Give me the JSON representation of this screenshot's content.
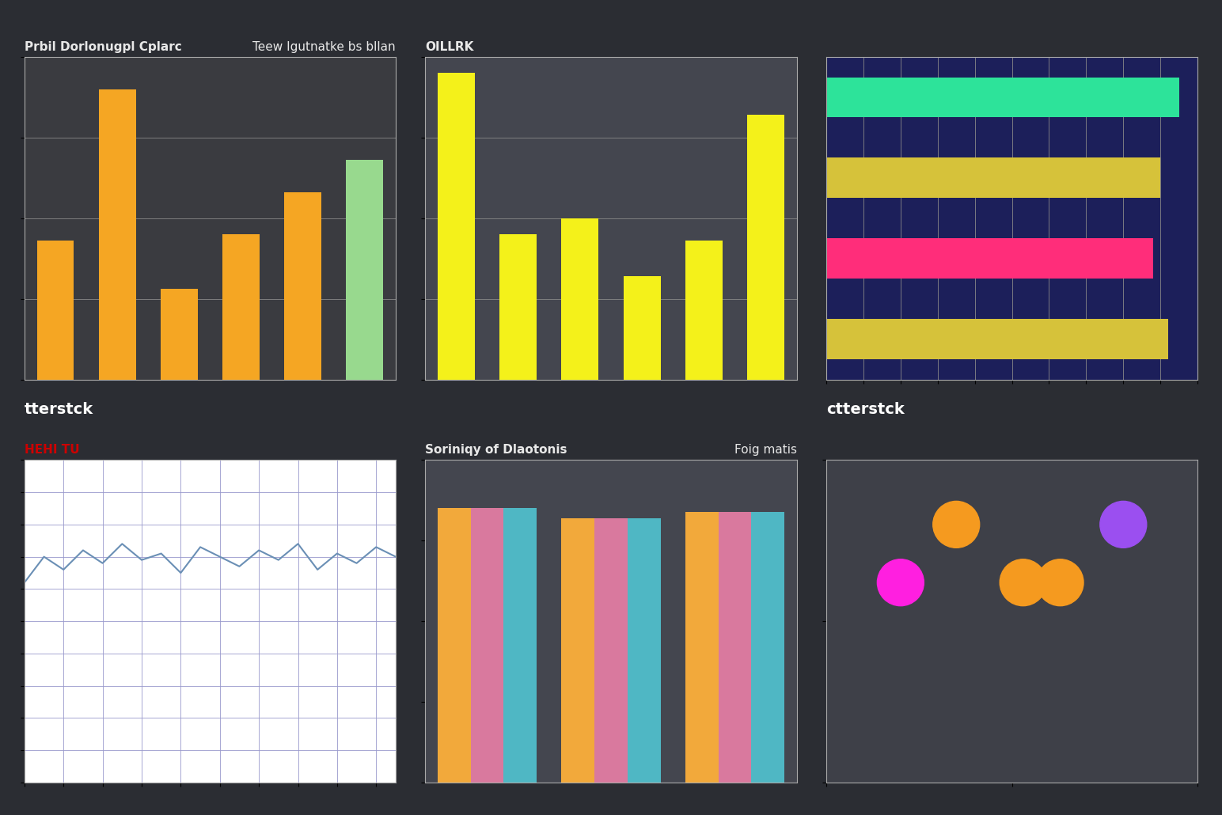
{
  "chart_data": [
    {
      "type": "bar",
      "title": "Prbil Dorlonugpl Cplarc",
      "subtitle": "Teew Igutnatke bs bllan",
      "categories": [
        null,
        null,
        null,
        null,
        null,
        null
      ],
      "values": [
        43,
        90,
        28,
        45,
        58,
        68
      ],
      "colors": [
        "#f5a623",
        "#f5a623",
        "#f5a623",
        "#f5a623",
        "#f5a623",
        "#98d98e"
      ],
      "ylim": [
        0,
        100
      ],
      "yticks": [
        0,
        25,
        50,
        75,
        100
      ],
      "grid": true,
      "tick_labels": false,
      "annotations": [
        "tterstck"
      ]
    },
    {
      "type": "bar",
      "title": "OILLRK",
      "categories": [
        null,
        null,
        null,
        null,
        null,
        null
      ],
      "values": [
        95,
        45,
        50,
        32,
        43,
        82
      ],
      "color": "#f4f11a",
      "ylim": [
        0,
        100
      ],
      "yticks": [
        0,
        25,
        50,
        75,
        100
      ],
      "grid": true,
      "tick_labels": false
    },
    {
      "type": "bar",
      "orientation": "horizontal",
      "categories": [
        null,
        null,
        null,
        null
      ],
      "values": [
        92,
        88,
        90,
        95
      ],
      "colors": [
        "#d6c23a",
        "#ff2d7a",
        "#d6c23a",
        "#2de39a"
      ],
      "xlim": [
        0,
        100
      ],
      "xticks": [
        0,
        10,
        20,
        30,
        40,
        50,
        60,
        70,
        80,
        90,
        100
      ],
      "grid": true,
      "tick_labels": false,
      "annotations": [
        "ctterstck"
      ]
    },
    {
      "type": "line",
      "title": "HEHI TU",
      "x": [
        0,
        1,
        2,
        3,
        4,
        5,
        6,
        7,
        8,
        9,
        10,
        11,
        12,
        13,
        14,
        15,
        16,
        17,
        18,
        19
      ],
      "values": [
        62,
        70,
        66,
        72,
        68,
        74,
        69,
        71,
        65,
        73,
        70,
        67,
        72,
        69,
        74,
        66,
        71,
        68,
        73,
        70
      ],
      "color": "#6a8fb5",
      "xlim": [
        0,
        19
      ],
      "xticks": [
        0,
        2,
        4,
        6,
        8,
        10,
        12,
        14,
        16,
        18
      ],
      "ylim": [
        0,
        100
      ],
      "yticks": [
        0,
        10,
        20,
        30,
        40,
        50,
        60,
        70,
        80,
        90,
        100
      ],
      "grid": true,
      "tick_labels": false
    },
    {
      "type": "bar",
      "title": "Soriniqy of Dlaotonis",
      "subtitle": "Foig matis",
      "categories": [
        null,
        null,
        null
      ],
      "series": [
        {
          "color": "#f2a93b",
          "values": [
            85,
            82,
            84
          ]
        },
        {
          "color": "#d9799e",
          "values": [
            85,
            82,
            84
          ]
        },
        {
          "color": "#4fb7c4",
          "values": [
            85,
            82,
            84
          ]
        }
      ],
      "ylim": [
        0,
        100
      ],
      "yticks": [
        0,
        25,
        50,
        75,
        100
      ],
      "grid": false,
      "tick_labels": false
    },
    {
      "type": "scatter",
      "x": [
        20,
        35,
        53,
        63,
        80
      ],
      "values": [
        62,
        80,
        62,
        62,
        80
      ],
      "colors": [
        "#ff1fe0",
        "#f59a1f",
        "#f59a1f",
        "#f59a1f",
        "#9b4ff0"
      ],
      "marker": "o",
      "xlim": [
        0,
        100
      ],
      "xticks": [
        0,
        50,
        100
      ],
      "ylim": [
        0,
        100
      ],
      "yticks": [
        0,
        50,
        100
      ],
      "grid": false,
      "tick_labels": false
    }
  ]
}
